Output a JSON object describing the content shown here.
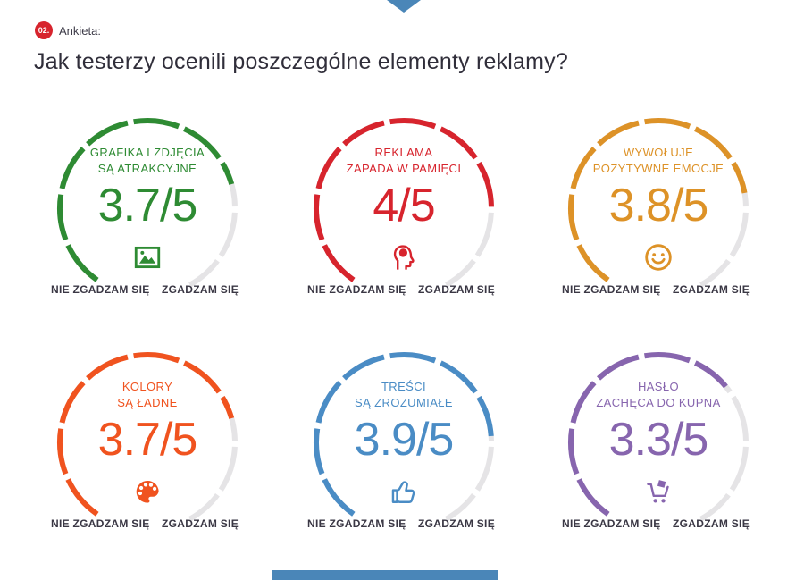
{
  "header": {
    "badge": "02.",
    "badge_color": "#d7242d",
    "section_label": "Ankieta:",
    "title": "Jak testerzy ocenili poszczególne elementy reklamy?"
  },
  "decor": {
    "top_arrow_color": "#4a86b8",
    "bottom_bar_color": "#4a86b8"
  },
  "scale_labels": {
    "disagree": "NIE ZGADZAM SIĘ",
    "agree": "ZGADZAM SIĘ"
  },
  "track_color": "#e5e4e6",
  "gauges": [
    {
      "title_line1": "GRAFIKA I ZDJĘCIA",
      "title_line2": "SĄ ATRAKCYJNE",
      "display": "3.7/5",
      "score": 3.7,
      "max": 5,
      "color": "#2e8b33",
      "icon": "image-icon"
    },
    {
      "title_line1": "REKLAMA",
      "title_line2": "ZAPADA W PAMIĘCI",
      "display": "4/5",
      "score": 4,
      "max": 5,
      "color": "#d7242d",
      "icon": "brain-icon"
    },
    {
      "title_line1": "WYWOŁUJE",
      "title_line2": "POZYTYWNE EMOCJE",
      "display": "3.8/5",
      "score": 3.8,
      "max": 5,
      "color": "#dd9227",
      "icon": "smiley-icon"
    },
    {
      "title_line1": "KOLORY",
      "title_line2": "SĄ ŁADNE",
      "display": "3.7/5",
      "score": 3.7,
      "max": 5,
      "color": "#f0531f",
      "icon": "palette-icon"
    },
    {
      "title_line1": "TREŚCI",
      "title_line2": "SĄ ZROZUMIAŁE",
      "display": "3.9/5",
      "score": 3.9,
      "max": 5,
      "color": "#4a8cc5",
      "icon": "thumb-up-icon"
    },
    {
      "title_line1": "HASŁO",
      "title_line2": "ZACHĘCA DO KUPNA",
      "display": "3.3/5",
      "score": 3.3,
      "max": 5,
      "color": "#8765ae",
      "icon": "cart-icon"
    }
  ],
  "chart_data": {
    "type": "gauge",
    "title": "Jak testerzy ocenili poszczególne elementy reklamy?",
    "max": 5,
    "scale_min_label": "NIE ZGADZAM SIĘ",
    "scale_max_label": "ZGADZAM SIĘ",
    "items": [
      {
        "label": "Grafika i zdjęcia są atrakcyjne",
        "value": 3.7
      },
      {
        "label": "Reklama zapada w pamięci",
        "value": 4
      },
      {
        "label": "Wywołuje pozytywne emocje",
        "value": 3.8
      },
      {
        "label": "Kolory są ładne",
        "value": 3.7
      },
      {
        "label": "Treści są zrozumiałe",
        "value": 3.9
      },
      {
        "label": "Hasło zachęca do kupna",
        "value": 3.3
      }
    ]
  }
}
